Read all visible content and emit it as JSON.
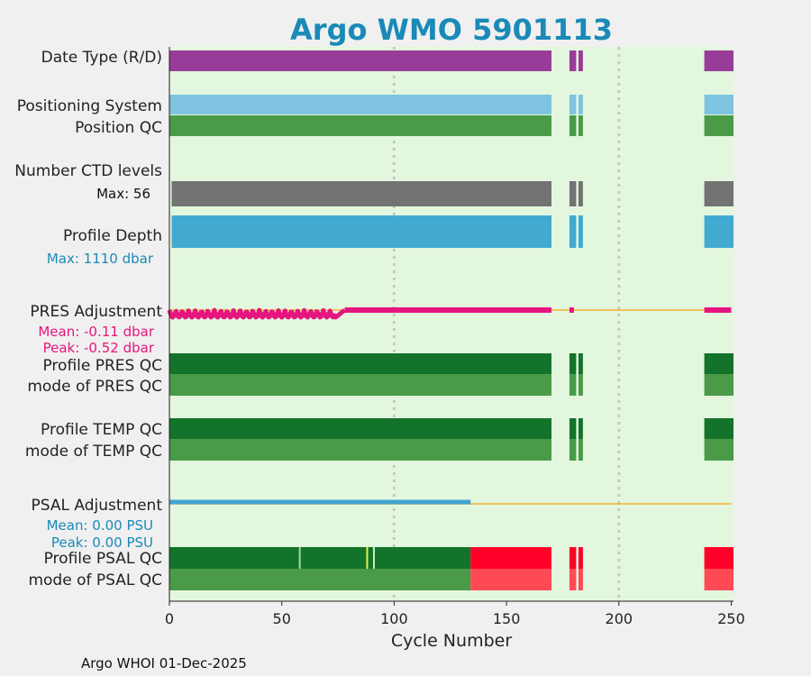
{
  "chart_data": {
    "type": "bar",
    "title": "Argo WMO 5901113",
    "xlabel": "Cycle Number",
    "xlim": [
      0,
      251
    ],
    "xticks": [
      0,
      50,
      100,
      150,
      200,
      250
    ],
    "xtick_labels": [
      "0",
      "50",
      "100",
      "150",
      "200",
      "250"
    ],
    "grid_x": [
      100,
      200
    ],
    "footer": "Argo WHOI 01-Dec-2025",
    "colors": {
      "background": "#e3f7df",
      "outer": "#f0f0f0",
      "title": "#1a8ab8",
      "purple": "#993c99",
      "lightblue": "#7ec4e0",
      "green": "#4a9a48",
      "darkgreen": "#13732a",
      "grey": "#737373",
      "depth": "#42aad0",
      "pink": "#e6157f",
      "psalblue": "#42a4d0",
      "red": "#ff0028",
      "lightred": "#ff4a55",
      "orange": "#f5b133",
      "grid": "#c8c8c8"
    },
    "cycle_segments": [
      [
        0,
        170
      ],
      [
        178,
        181
      ],
      [
        182,
        184
      ],
      [
        238,
        251
      ]
    ],
    "labels": {
      "date_type": "Date Type (R/D)",
      "positioning": "Positioning System",
      "position_qc": "Position QC",
      "ctd_levels": "Number CTD levels",
      "ctd_max": "Max: 56",
      "profile_depth": "Profile Depth",
      "depth_max": "Max: 1110 dbar",
      "pres_adj": "PRES Adjustment",
      "pres_mean": "Mean: -0.11 dbar",
      "pres_peak": "Peak: -0.52 dbar",
      "pres_qc": "Profile PRES QC",
      "pres_mode": "mode of PRES QC",
      "temp_qc": "Profile TEMP QC",
      "temp_mode": "mode of TEMP QC",
      "psal_adj": "PSAL Adjustment",
      "psal_mean": "Mean: 0.00 PSU",
      "psal_peak": "Peak: 0.00 PSU",
      "psal_qc": "Profile PSAL QC",
      "psal_mode": "mode of PSAL QC"
    },
    "ctd_levels": {
      "max": 56
    },
    "profile_depth": {
      "max_dbar": 1110
    },
    "pres_adjustment": {
      "mean_dbar": -0.11,
      "peak_dbar": -0.52,
      "adjusted_until_cycle": 78
    },
    "psal_adjustment": {
      "mean_psu": 0.0,
      "peak_psu": 0.0,
      "adjusted_until_cycle": 134
    },
    "psal_qc": {
      "good_until_cycle": 134,
      "bad_from_cycle": 134
    }
  }
}
